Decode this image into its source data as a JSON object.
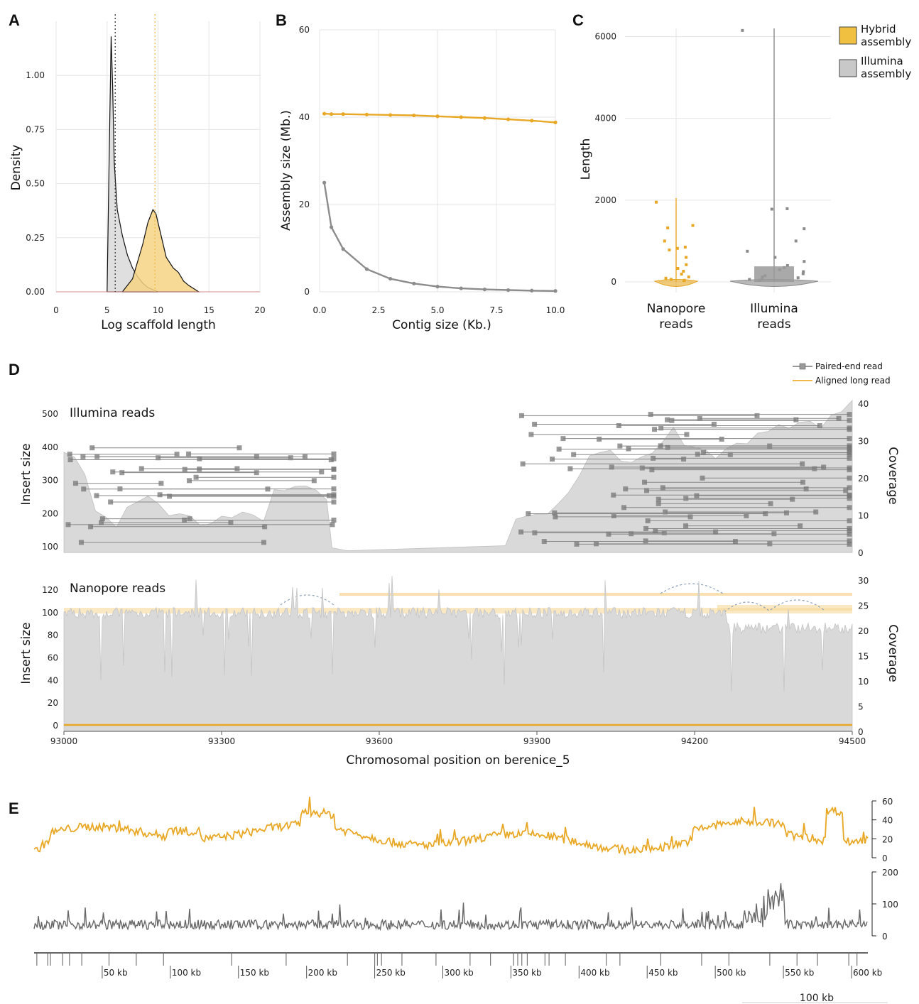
{
  "legend": {
    "hybrid": "Hybrid assembly",
    "illumina": "Illumina assembly",
    "hybrid_color": "#f0c040",
    "illumina_color": "#c8c8c8"
  },
  "colors": {
    "orange": "#e8a825",
    "gray": "#8c8c8c",
    "dark": "#555555",
    "fill_gray": "#d9d9d9",
    "fill_yellow": "#f5d483"
  },
  "panels": {
    "A": {
      "letter": "A"
    },
    "B": {
      "letter": "B"
    },
    "C": {
      "letter": "C"
    },
    "D": {
      "letter": "D",
      "illumina_label": "Illumina reads",
      "nanopore_label": "Nanopore reads",
      "legend_pe": "Paired-end read",
      "legend_long": "Aligned long read"
    },
    "E": {
      "letter": "E",
      "scale_label": "100 kb"
    }
  },
  "chart_data": [
    {
      "id": "A",
      "type": "area",
      "xlabel": "Log scaffold length",
      "ylabel": "Density",
      "xlim": [
        0,
        20
      ],
      "ylim": [
        0,
        1.25
      ],
      "xticks": [
        0,
        5,
        10,
        15,
        20
      ],
      "yticks": [
        0.0,
        0.25,
        0.5,
        0.75,
        1.0
      ],
      "ytick_labels": [
        "0.00",
        "0.25",
        "0.50",
        "0.75",
        "1.00"
      ],
      "vlines": [
        {
          "x": 5.8,
          "series": "Illumina assembly"
        },
        {
          "x": 9.7,
          "series": "Hybrid assembly"
        }
      ],
      "series": [
        {
          "name": "Illumina assembly",
          "x": [
            5.0,
            5.2,
            5.4,
            5.55,
            5.7,
            6.0,
            6.5,
            7.0,
            7.5,
            8.0,
            8.5,
            9.0,
            10.0
          ],
          "y": [
            0.0,
            0.6,
            1.18,
            0.95,
            0.6,
            0.38,
            0.26,
            0.17,
            0.11,
            0.07,
            0.04,
            0.02,
            0.0
          ]
        },
        {
          "name": "Hybrid assembly",
          "x": [
            6.5,
            7.5,
            8.5,
            9.0,
            9.5,
            9.8,
            10.2,
            10.8,
            11.5,
            12.0,
            12.5,
            13.0,
            14.0
          ],
          "y": [
            0.0,
            0.06,
            0.22,
            0.32,
            0.38,
            0.36,
            0.28,
            0.16,
            0.11,
            0.09,
            0.05,
            0.03,
            0.0
          ]
        }
      ]
    },
    {
      "id": "B",
      "type": "line",
      "xlabel": "Contig size (Kb.)",
      "ylabel": "Assembly size (Mb.)",
      "xlim": [
        0,
        10
      ],
      "ylim": [
        0,
        60
      ],
      "xticks": [
        0.0,
        2.5,
        5.0,
        7.5,
        10.0
      ],
      "xtick_labels": [
        "0.0",
        "2.5",
        "5.0",
        "7.5",
        "10.0"
      ],
      "yticks": [
        0,
        20,
        40,
        60
      ],
      "x": [
        0.2,
        0.5,
        1,
        2,
        3,
        4,
        5,
        6,
        7,
        8,
        9,
        10
      ],
      "series": [
        {
          "name": "Hybrid assembly",
          "values": [
            40.8,
            40.7,
            40.7,
            40.6,
            40.5,
            40.4,
            40.2,
            40.0,
            39.8,
            39.5,
            39.2,
            38.8
          ]
        },
        {
          "name": "Illumina assembly",
          "values": [
            25.0,
            14.8,
            9.8,
            5.2,
            3.0,
            1.9,
            1.2,
            0.8,
            0.55,
            0.4,
            0.28,
            0.2
          ]
        }
      ]
    },
    {
      "id": "C",
      "type": "scatter",
      "ylabel": "Length",
      "ylim": [
        0,
        6200
      ],
      "yticks": [
        0,
        2000,
        4000,
        6000
      ],
      "categories": [
        "Nanopore reads",
        "Illumina reads"
      ],
      "series": [
        {
          "name": "Nanopore reads",
          "max": 2050,
          "points": [
            1950,
            1380,
            1320,
            1000,
            850,
            820,
            780,
            600,
            420,
            330,
            260,
            190,
            120,
            90,
            60,
            40,
            30
          ]
        },
        {
          "name": "Illumina reads",
          "max": 6200,
          "points": [
            6150,
            1790,
            1780,
            1300,
            1000,
            750,
            600,
            500,
            400,
            350,
            300,
            250,
            200,
            150,
            120,
            100,
            80,
            60,
            40
          ]
        }
      ]
    },
    {
      "id": "D-top",
      "type": "area",
      "subtitle": "Illumina reads",
      "ylabel": "Insert size",
      "ylabel_right": "Coverage",
      "xlim": [
        93000,
        94500
      ],
      "yticks": [
        100,
        200,
        300,
        400,
        500
      ],
      "yticks_right": [
        0,
        10,
        20,
        30,
        40
      ],
      "coverage_x": [
        93000,
        93020,
        93040,
        93060,
        93080,
        93100,
        93120,
        93140,
        93160,
        93180,
        93200,
        93220,
        93240,
        93260,
        93280,
        93300,
        93320,
        93340,
        93360,
        93380,
        93400,
        93420,
        93440,
        93460,
        93480,
        93500,
        93510,
        93540,
        93840,
        93860,
        93880,
        93900,
        93920,
        93940,
        93960,
        93980,
        94000,
        94020,
        94040,
        94060,
        94080,
        94100,
        94120,
        94140,
        94160,
        94180,
        94200,
        94220,
        94240,
        94260,
        94280,
        94300,
        94320,
        94340,
        94360,
        94380,
        94400,
        94420,
        94440,
        94460,
        94480,
        94500
      ],
      "coverage": [
        27,
        26,
        20,
        11,
        9,
        6,
        13,
        14,
        15,
        13,
        10,
        11,
        9,
        8,
        8,
        10,
        9,
        10,
        10,
        9,
        17,
        17,
        18,
        18,
        17,
        14,
        1,
        1,
        1,
        9,
        9,
        10,
        10,
        13,
        16,
        20,
        25,
        27,
        27,
        25,
        24,
        26,
        27,
        30,
        33,
        28,
        29,
        27,
        26,
        28,
        30,
        30,
        31,
        33,
        34,
        34,
        35,
        35,
        34,
        36,
        37,
        40
      ]
    },
    {
      "id": "D-bottom",
      "type": "area",
      "subtitle": "Nanopore reads",
      "xlabel": "Chromosomal position on berenice_5",
      "ylabel": "Insert size",
      "ylabel_right": "Coverage",
      "xlim": [
        93000,
        94500
      ],
      "xticks": [
        93000,
        93300,
        93600,
        93900,
        94200,
        94500
      ],
      "yticks": [
        0,
        20,
        40,
        60,
        80,
        100,
        120
      ],
      "yticks_right": [
        0,
        5,
        10,
        15,
        20,
        25,
        30
      ],
      "coverage_mean_left": 23.5,
      "coverage_mean_right": 20.5,
      "break_position": 94260
    },
    {
      "id": "E",
      "type": "line",
      "series": [
        {
          "name": "Hybrid assembly",
          "yticks": [
            0,
            20,
            40,
            60
          ],
          "ylim": [
            0,
            70
          ]
        },
        {
          "name": "Illumina assembly",
          "yticks": [
            0,
            100,
            200
          ],
          "ylim": [
            0,
            210
          ]
        }
      ],
      "xtick_labels": [
        "50 kb",
        "100 kb",
        "150 kb",
        "200 kb",
        "250 kb",
        "300 kb",
        "350 kb",
        "400 kb",
        "450 kb",
        "500 kb",
        "550 kb",
        "600 kb"
      ],
      "xticks": [
        50,
        100,
        150,
        200,
        250,
        300,
        350,
        400,
        450,
        500,
        550,
        600
      ],
      "xlim": [
        0,
        612
      ]
    }
  ]
}
